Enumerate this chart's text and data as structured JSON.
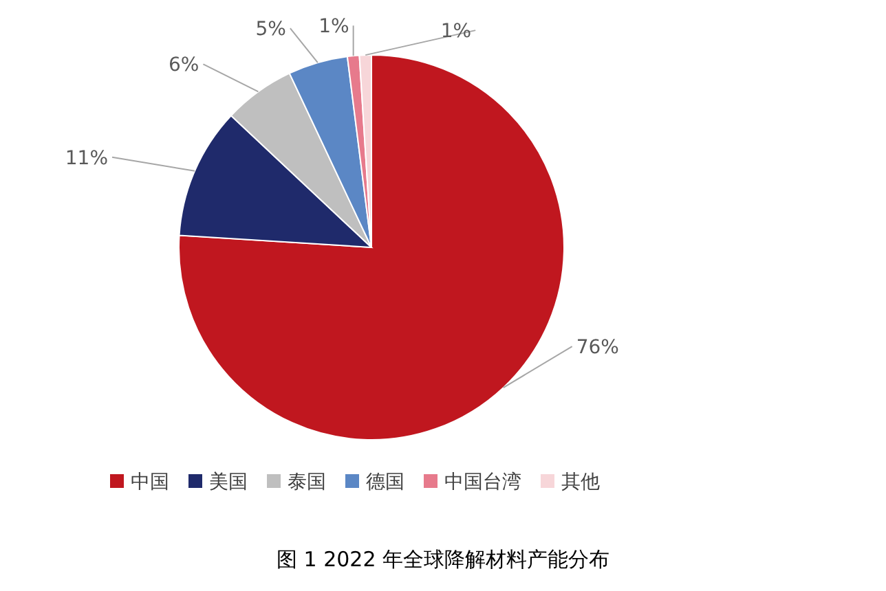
{
  "chart_data": {
    "type": "pie",
    "title": "图 1  2022 年全球降解材料产能分布",
    "categories": [
      "中国",
      "美国",
      "泰国",
      "德国",
      "中国台湾",
      "其他"
    ],
    "values": [
      76,
      11,
      6,
      5,
      1,
      1
    ],
    "colors": [
      "#c0171f",
      "#1f2a6b",
      "#bfbfbf",
      "#5b87c5",
      "#e77a8c",
      "#f7d6d9"
    ],
    "value_labels": [
      "76%",
      "11%",
      "6%",
      "5%",
      "1%",
      "1%"
    ],
    "legend": "bottom"
  }
}
